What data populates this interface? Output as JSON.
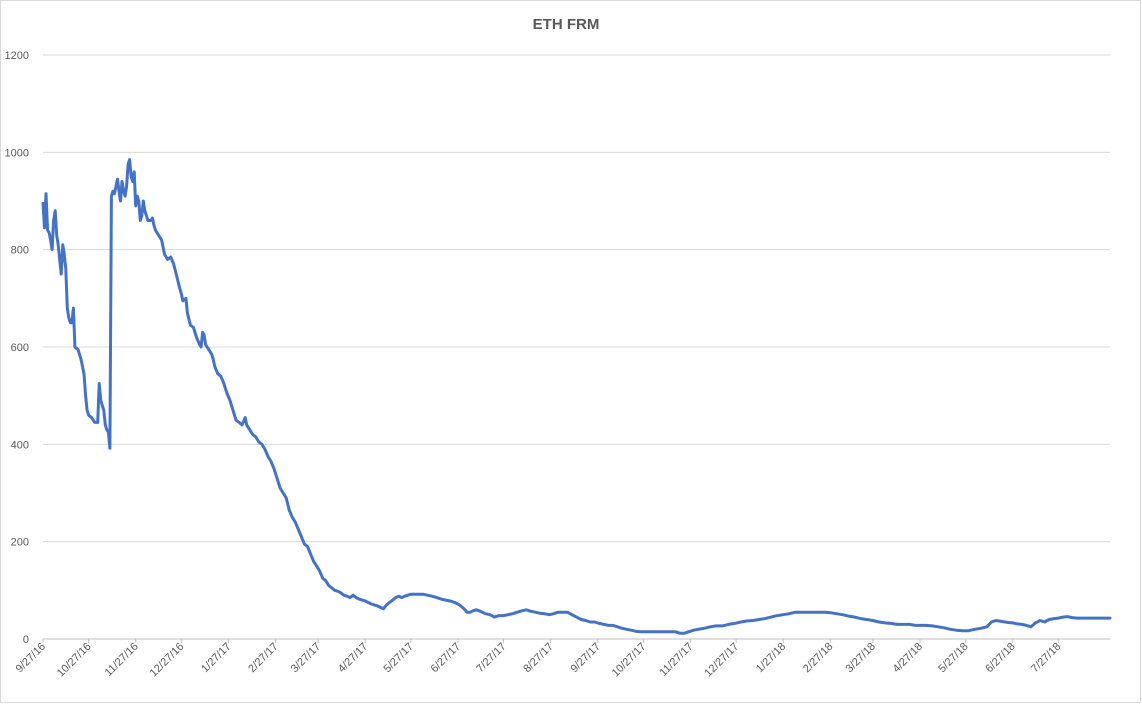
{
  "chart_data": {
    "type": "line",
    "title": "ETH FRM",
    "xlabel": "",
    "ylabel": "",
    "ylim": [
      0,
      1200
    ],
    "y_ticks": [
      0,
      200,
      400,
      600,
      800,
      1000,
      1200
    ],
    "x_tick_labels": [
      "9/27/16",
      "10/27/16",
      "11/27/16",
      "12/27/16",
      "1/27/17",
      "2/27/17",
      "3/27/17",
      "4/27/17",
      "5/27/17",
      "6/27/17",
      "7/27/17",
      "8/27/17",
      "9/27/17",
      "10/27/17",
      "11/27/17",
      "12/27/17",
      "1/27/18",
      "2/27/18",
      "3/27/18",
      "4/27/18",
      "5/27/18",
      "6/27/18",
      "7/27/18"
    ],
    "x_range": [
      "9/27/16",
      "8/30/18"
    ],
    "grid": true,
    "legend": "none",
    "line_color": "#4472c4",
    "series": [
      {
        "values": [
          [
            "9/27/16",
            895
          ],
          [
            "9/28/16",
            845
          ],
          [
            "9/29/16",
            915
          ],
          [
            "9/30/16",
            840
          ],
          [
            "10/1/16",
            835
          ],
          [
            "10/2/16",
            820
          ],
          [
            "10/3/16",
            800
          ],
          [
            "10/4/16",
            860
          ],
          [
            "10/5/16",
            880
          ],
          [
            "10/6/16",
            830
          ],
          [
            "10/7/16",
            810
          ],
          [
            "10/8/16",
            780
          ],
          [
            "10/9/16",
            750
          ],
          [
            "10/10/16",
            810
          ],
          [
            "10/11/16",
            790
          ],
          [
            "10/12/16",
            760
          ],
          [
            "10/13/16",
            680
          ],
          [
            "10/14/16",
            660
          ],
          [
            "10/15/16",
            650
          ],
          [
            "10/16/16",
            650
          ],
          [
            "10/17/16",
            680
          ],
          [
            "10/18/16",
            600
          ],
          [
            "10/20/16",
            595
          ],
          [
            "10/22/16",
            575
          ],
          [
            "10/23/16",
            560
          ],
          [
            "10/24/16",
            545
          ],
          [
            "10/25/16",
            500
          ],
          [
            "10/26/16",
            470
          ],
          [
            "10/27/16",
            460
          ],
          [
            "10/29/16",
            455
          ],
          [
            "10/30/16",
            450
          ],
          [
            "10/31/16",
            445
          ],
          [
            "11/2/16",
            445
          ],
          [
            "11/3/16",
            525
          ],
          [
            "11/4/16",
            490
          ],
          [
            "11/5/16",
            480
          ],
          [
            "11/6/16",
            470
          ],
          [
            "11/7/16",
            440
          ],
          [
            "11/8/16",
            430
          ],
          [
            "11/9/16",
            425
          ],
          [
            "11/10/16",
            392
          ],
          [
            "11/11/16",
            910
          ],
          [
            "11/12/16",
            920
          ],
          [
            "11/13/16",
            915
          ],
          [
            "11/14/16",
            930
          ],
          [
            "11/15/16",
            945
          ],
          [
            "11/16/16",
            920
          ],
          [
            "11/17/16",
            900
          ],
          [
            "11/18/16",
            940
          ],
          [
            "11/19/16",
            920
          ],
          [
            "11/20/16",
            910
          ],
          [
            "11/21/16",
            930
          ],
          [
            "11/22/16",
            975
          ],
          [
            "11/23/16",
            985
          ],
          [
            "11/24/16",
            950
          ],
          [
            "11/25/16",
            940
          ],
          [
            "11/26/16",
            960
          ],
          [
            "11/27/16",
            890
          ],
          [
            "11/28/16",
            910
          ],
          [
            "11/29/16",
            900
          ],
          [
            "11/30/16",
            860
          ],
          [
            "12/1/16",
            870
          ],
          [
            "12/2/16",
            900
          ],
          [
            "12/3/16",
            880
          ],
          [
            "12/4/16",
            870
          ],
          [
            "12/5/16",
            860
          ],
          [
            "12/7/16",
            860
          ],
          [
            "12/8/16",
            865
          ],
          [
            "12/9/16",
            850
          ],
          [
            "12/10/16",
            840
          ],
          [
            "12/12/16",
            830
          ],
          [
            "12/14/16",
            820
          ],
          [
            "12/16/16",
            790
          ],
          [
            "12/18/16",
            780
          ],
          [
            "12/20/16",
            785
          ],
          [
            "12/22/16",
            770
          ],
          [
            "12/24/16",
            745
          ],
          [
            "12/26/16",
            720
          ],
          [
            "12/27/16",
            710
          ],
          [
            "12/28/16",
            695
          ],
          [
            "12/30/16",
            700
          ],
          [
            "12/31/16",
            670
          ],
          [
            "1/2/17",
            645
          ],
          [
            "1/4/17",
            640
          ],
          [
            "1/6/17",
            620
          ],
          [
            "1/8/17",
            605
          ],
          [
            "1/9/17",
            600
          ],
          [
            "1/10/17",
            630
          ],
          [
            "1/11/17",
            625
          ],
          [
            "1/12/17",
            605
          ],
          [
            "1/14/17",
            595
          ],
          [
            "1/16/17",
            585
          ],
          [
            "1/17/17",
            575
          ],
          [
            "1/18/17",
            560
          ],
          [
            "1/20/17",
            545
          ],
          [
            "1/22/17",
            540
          ],
          [
            "1/24/17",
            525
          ],
          [
            "1/26/17",
            505
          ],
          [
            "1/28/17",
            490
          ],
          [
            "1/30/17",
            470
          ],
          [
            "2/1/17",
            450
          ],
          [
            "2/3/17",
            445
          ],
          [
            "2/5/17",
            440
          ],
          [
            "2/7/17",
            455
          ],
          [
            "2/8/17",
            440
          ],
          [
            "2/10/17",
            430
          ],
          [
            "2/12/17",
            420
          ],
          [
            "2/14/17",
            415
          ],
          [
            "2/16/17",
            405
          ],
          [
            "2/18/17",
            400
          ],
          [
            "2/20/17",
            390
          ],
          [
            "2/22/17",
            375
          ],
          [
            "2/24/17",
            365
          ],
          [
            "2/26/17",
            350
          ],
          [
            "2/28/17",
            330
          ],
          [
            "3/2/17",
            310
          ],
          [
            "3/4/17",
            300
          ],
          [
            "3/6/17",
            290
          ],
          [
            "3/8/17",
            265
          ],
          [
            "3/10/17",
            250
          ],
          [
            "3/12/17",
            240
          ],
          [
            "3/14/17",
            225
          ],
          [
            "3/16/17",
            210
          ],
          [
            "3/18/17",
            195
          ],
          [
            "3/20/17",
            190
          ],
          [
            "3/22/17",
            175
          ],
          [
            "3/24/17",
            160
          ],
          [
            "3/26/17",
            150
          ],
          [
            "3/28/17",
            140
          ],
          [
            "3/30/17",
            125
          ],
          [
            "4/1/17",
            120
          ],
          [
            "4/3/17",
            110
          ],
          [
            "4/5/17",
            105
          ],
          [
            "4/7/17",
            100
          ],
          [
            "4/9/17",
            98
          ],
          [
            "4/11/17",
            95
          ],
          [
            "4/13/17",
            90
          ],
          [
            "4/15/17",
            88
          ],
          [
            "4/17/17",
            85
          ],
          [
            "4/19/17",
            90
          ],
          [
            "4/21/17",
            85
          ],
          [
            "4/23/17",
            82
          ],
          [
            "4/25/17",
            80
          ],
          [
            "4/27/17",
            78
          ],
          [
            "4/29/17",
            75
          ],
          [
            "5/1/17",
            72
          ],
          [
            "5/3/17",
            70
          ],
          [
            "5/5/17",
            68
          ],
          [
            "5/7/17",
            65
          ],
          [
            "5/9/17",
            62
          ],
          [
            "5/11/17",
            70
          ],
          [
            "5/13/17",
            75
          ],
          [
            "5/15/17",
            80
          ],
          [
            "5/17/17",
            85
          ],
          [
            "5/19/17",
            88
          ],
          [
            "5/21/17",
            85
          ],
          [
            "5/23/17",
            88
          ],
          [
            "5/25/17",
            90
          ],
          [
            "5/27/17",
            92
          ],
          [
            "5/29/17",
            92
          ],
          [
            "6/1/17",
            92
          ],
          [
            "6/4/17",
            92
          ],
          [
            "6/7/17",
            90
          ],
          [
            "6/10/17",
            88
          ],
          [
            "6/13/17",
            85
          ],
          [
            "6/16/17",
            82
          ],
          [
            "6/19/17",
            80
          ],
          [
            "6/22/17",
            78
          ],
          [
            "6/25/17",
            75
          ],
          [
            "6/28/17",
            70
          ],
          [
            "7/1/17",
            62
          ],
          [
            "7/3/17",
            55
          ],
          [
            "7/5/17",
            55
          ],
          [
            "7/7/17",
            58
          ],
          [
            "7/9/17",
            60
          ],
          [
            "7/11/17",
            58
          ],
          [
            "7/13/17",
            55
          ],
          [
            "7/15/17",
            52
          ],
          [
            "7/18/17",
            50
          ],
          [
            "7/21/17",
            45
          ],
          [
            "7/24/17",
            48
          ],
          [
            "7/27/17",
            48
          ],
          [
            "7/30/17",
            50
          ],
          [
            "8/2/17",
            52
          ],
          [
            "8/5/17",
            55
          ],
          [
            "8/8/17",
            58
          ],
          [
            "8/11/17",
            60
          ],
          [
            "8/14/17",
            57
          ],
          [
            "8/17/17",
            55
          ],
          [
            "8/20/17",
            53
          ],
          [
            "8/23/17",
            52
          ],
          [
            "8/26/17",
            50
          ],
          [
            "8/29/17",
            52
          ],
          [
            "9/1/17",
            55
          ],
          [
            "9/4/17",
            55
          ],
          [
            "9/7/17",
            55
          ],
          [
            "9/10/17",
            50
          ],
          [
            "9/13/17",
            45
          ],
          [
            "9/16/17",
            40
          ],
          [
            "9/19/17",
            38
          ],
          [
            "9/22/17",
            35
          ],
          [
            "9/25/17",
            35
          ],
          [
            "9/28/17",
            32
          ],
          [
            "10/1/17",
            30
          ],
          [
            "10/4/17",
            28
          ],
          [
            "10/7/17",
            28
          ],
          [
            "10/10/17",
            25
          ],
          [
            "10/13/17",
            22
          ],
          [
            "10/16/17",
            20
          ],
          [
            "10/19/17",
            18
          ],
          [
            "10/22/17",
            16
          ],
          [
            "10/25/17",
            15
          ],
          [
            "10/28/17",
            15
          ],
          [
            "11/1/17",
            15
          ],
          [
            "11/5/17",
            15
          ],
          [
            "11/9/17",
            15
          ],
          [
            "11/13/17",
            15
          ],
          [
            "11/17/17",
            15
          ],
          [
            "11/20/17",
            12
          ],
          [
            "11/23/17",
            12
          ],
          [
            "11/26/17",
            15
          ],
          [
            "11/29/17",
            18
          ],
          [
            "12/2/17",
            20
          ],
          [
            "12/6/17",
            22
          ],
          [
            "12/10/17",
            25
          ],
          [
            "12/14/17",
            27
          ],
          [
            "12/18/17",
            27
          ],
          [
            "12/22/17",
            30
          ],
          [
            "12/26/17",
            32
          ],
          [
            "12/30/17",
            35
          ],
          [
            "1/3/18",
            37
          ],
          [
            "1/7/18",
            38
          ],
          [
            "1/11/18",
            40
          ],
          [
            "1/15/18",
            42
          ],
          [
            "1/19/18",
            45
          ],
          [
            "1/23/18",
            48
          ],
          [
            "1/27/18",
            50
          ],
          [
            "1/31/18",
            52
          ],
          [
            "2/4/18",
            55
          ],
          [
            "2/8/18",
            55
          ],
          [
            "2/12/18",
            55
          ],
          [
            "2/16/18",
            55
          ],
          [
            "2/20/18",
            55
          ],
          [
            "2/24/18",
            55
          ],
          [
            "2/27/18",
            54
          ],
          [
            "3/3/18",
            52
          ],
          [
            "3/7/18",
            50
          ],
          [
            "3/11/18",
            47
          ],
          [
            "3/15/18",
            45
          ],
          [
            "3/19/18",
            42
          ],
          [
            "3/23/18",
            40
          ],
          [
            "3/27/18",
            38
          ],
          [
            "3/31/18",
            35
          ],
          [
            "4/4/18",
            33
          ],
          [
            "4/8/18",
            32
          ],
          [
            "4/12/18",
            30
          ],
          [
            "4/16/18",
            30
          ],
          [
            "4/20/18",
            30
          ],
          [
            "4/24/18",
            28
          ],
          [
            "4/27/18",
            28
          ],
          [
            "5/1/18",
            28
          ],
          [
            "5/5/18",
            27
          ],
          [
            "5/9/18",
            25
          ],
          [
            "5/13/18",
            23
          ],
          [
            "5/17/18",
            20
          ],
          [
            "5/21/18",
            18
          ],
          [
            "5/25/18",
            17
          ],
          [
            "5/29/18",
            17
          ],
          [
            "6/2/18",
            20
          ],
          [
            "6/6/18",
            22
          ],
          [
            "6/10/18",
            25
          ],
          [
            "6/13/18",
            35
          ],
          [
            "6/16/18",
            38
          ],
          [
            "6/20/18",
            36
          ],
          [
            "6/24/18",
            34
          ],
          [
            "6/27/18",
            33
          ],
          [
            "6/30/18",
            31
          ],
          [
            "7/3/18",
            30
          ],
          [
            "7/6/18",
            28
          ],
          [
            "7/9/18",
            25
          ],
          [
            "7/12/18",
            33
          ],
          [
            "7/15/18",
            38
          ],
          [
            "7/18/18",
            35
          ],
          [
            "7/21/18",
            40
          ],
          [
            "7/24/18",
            42
          ],
          [
            "7/27/18",
            43
          ],
          [
            "7/30/18",
            45
          ],
          [
            "8/2/18",
            46
          ],
          [
            "8/5/18",
            44
          ],
          [
            "8/8/18",
            43
          ],
          [
            "8/12/18",
            43
          ],
          [
            "8/16/18",
            43
          ],
          [
            "8/20/18",
            43
          ],
          [
            "8/25/18",
            43
          ],
          [
            "8/30/18",
            43
          ]
        ]
      }
    ]
  }
}
